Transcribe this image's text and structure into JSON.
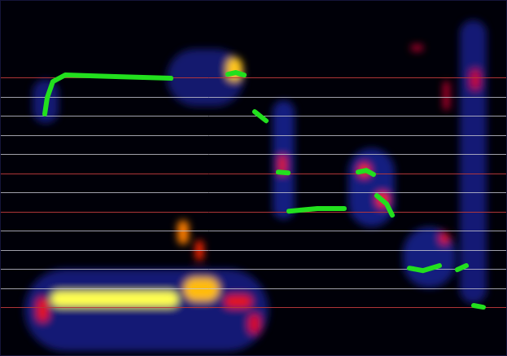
{
  "chart_data": {
    "type": "line",
    "tick_labels": false,
    "grid": true,
    "xlim": [
      0,
      623
    ],
    "ylim": [
      -2.55,
      16.05
    ],
    "yticks": [
      0,
      1,
      2,
      3,
      4,
      5,
      6,
      7,
      8,
      9,
      10,
      11,
      12
    ],
    "reference_lines": {
      "values": [
        0,
        5,
        7,
        12
      ],
      "color": "#b8383a"
    },
    "x": [
      55,
      58,
      65,
      80,
      110,
      150,
      210,
      null,
      280,
      290,
      300,
      null,
      313,
      327,
      null,
      342,
      354,
      null,
      355,
      390,
      423,
      null,
      440,
      450,
      459,
      null,
      463,
      475,
      482,
      null,
      503,
      520,
      540,
      null,
      562,
      573,
      null,
      582,
      594
    ],
    "series": [
      {
        "color": "#22e01e",
        "values": [
          10.09,
          10.94,
          11.79,
          12.13,
          12.09,
          12.04,
          11.96,
          null,
          12.17,
          12.26,
          12.13,
          null,
          10.21,
          9.74,
          null,
          7.06,
          7.02,
          null,
          5.02,
          5.15,
          5.15,
          null,
          7.06,
          7.15,
          6.94,
          null,
          5.83,
          5.4,
          4.81,
          null,
          2.04,
          1.91,
          2.17,
          null,
          1.96,
          2.17,
          null,
          0.09,
          0
        ]
      }
    ],
    "heat": [
      {
        "x0": 30,
        "x1": 330,
        "y0": -2.3,
        "y1": 2.0,
        "value": 0.22
      },
      {
        "x0": 335,
        "x1": 362,
        "y0": 4.6,
        "y1": 10.8,
        "value": 0.25
      },
      {
        "x0": 428,
        "x1": 485,
        "y0": 4.2,
        "y1": 8.3,
        "value": 0.25
      },
      {
        "x0": 495,
        "x1": 560,
        "y0": 1.0,
        "y1": 4.2,
        "value": 0.24
      },
      {
        "x0": 565,
        "x1": 598,
        "y0": 0.2,
        "y1": 15.0,
        "value": 0.22
      },
      {
        "x0": 205,
        "x1": 300,
        "y0": 10.5,
        "y1": 13.5,
        "value": 0.2
      },
      {
        "x0": 40,
        "x1": 72,
        "y0": 9.6,
        "y1": 11.9,
        "value": 0.22
      },
      {
        "x0": 62,
        "x1": 220,
        "y0": 0.0,
        "y1": 0.85,
        "value": 1.0
      },
      {
        "x0": 45,
        "x1": 60,
        "y0": -0.77,
        "y1": 0.51,
        "value": 0.6
      },
      {
        "x0": 218,
        "x1": 232,
        "y0": 3.28,
        "y1": 4.55,
        "value": 0.8
      },
      {
        "x0": 240,
        "x1": 250,
        "y0": 2.43,
        "y1": 3.49,
        "value": 0.7
      },
      {
        "x0": 225,
        "x1": 270,
        "y0": 0.3,
        "y1": 1.57,
        "value": 0.88
      },
      {
        "x0": 275,
        "x1": 310,
        "y0": -0.04,
        "y1": 0.64,
        "value": 0.6
      },
      {
        "x0": 305,
        "x1": 320,
        "y0": -1.4,
        "y1": -0.34,
        "value": 0.55
      },
      {
        "x0": 278,
        "x1": 298,
        "y0": 11.79,
        "y1": 13.06,
        "value": 0.9
      },
      {
        "x0": 342,
        "x1": 352,
        "y0": 6.89,
        "y1": 7.96,
        "value": 0.6
      },
      {
        "x0": 440,
        "x1": 455,
        "y0": 6.77,
        "y1": 7.53,
        "value": 0.7
      },
      {
        "x0": 462,
        "x1": 478,
        "y0": 5.19,
        "y1": 6.04,
        "value": 0.7
      },
      {
        "x0": 540,
        "x1": 552,
        "y0": 3.28,
        "y1": 3.91,
        "value": 0.6
      },
      {
        "x0": 578,
        "x1": 590,
        "y0": 11.36,
        "y1": 12.43,
        "value": 0.5
      },
      {
        "x0": 545,
        "x1": 552,
        "y0": 10.3,
        "y1": 11.8,
        "value": 0.5
      },
      {
        "x0": 505,
        "x1": 520,
        "y0": 13.4,
        "y1": 13.7,
        "value": 0.5
      }
    ]
  }
}
